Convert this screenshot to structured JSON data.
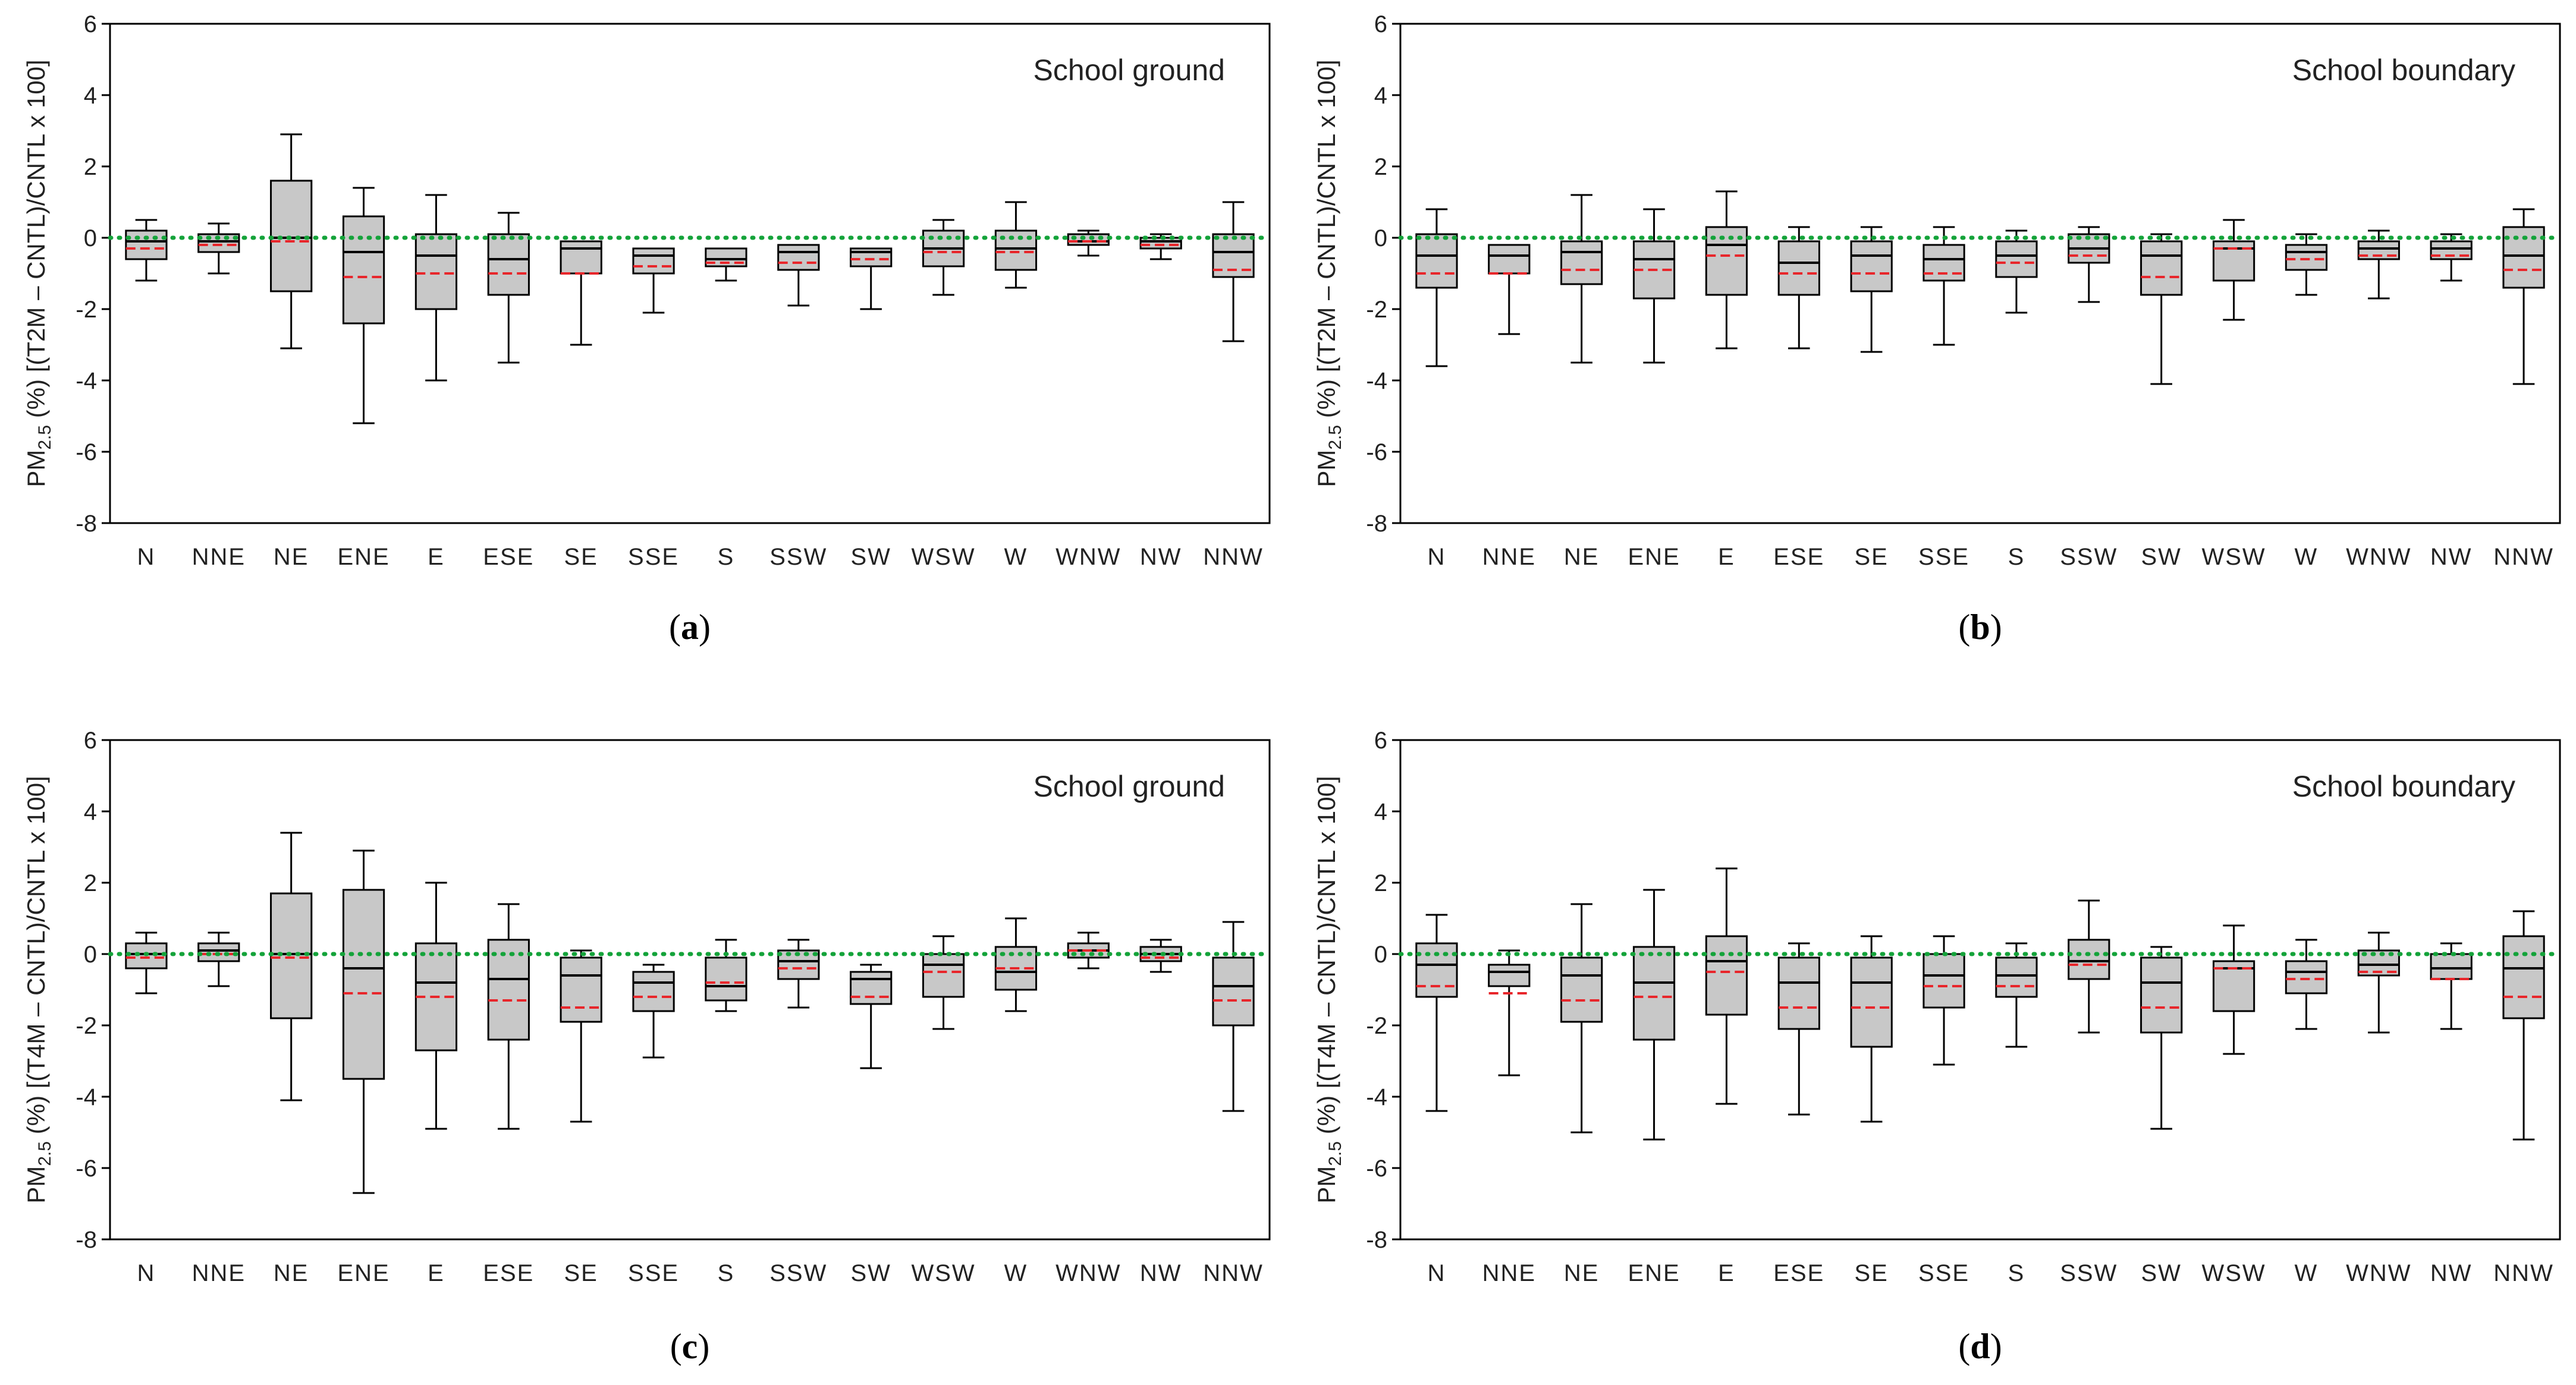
{
  "chart_data": [
    {
      "type": "box",
      "panel_label": "a",
      "annotation": "School ground",
      "ylabel_parts": [
        "PM",
        "2.5",
        " (%) [(T2M – CNTL)/CNTL  x 100]"
      ],
      "ylim": [
        -8,
        6
      ],
      "yticks": [
        -8,
        -6,
        -4,
        -2,
        0,
        2,
        4,
        6
      ],
      "reference_line_y": 0,
      "categories": [
        "N",
        "NNE",
        "NE",
        "ENE",
        "E",
        "ESE",
        "SE",
        "SSE",
        "S",
        "SSW",
        "SW",
        "WSW",
        "W",
        "WNW",
        "NW",
        "NNW"
      ],
      "boxes": [
        {
          "min": -1.2,
          "q1": -0.6,
          "median": -0.1,
          "mean": -0.3,
          "q3": 0.2,
          "max": 0.5
        },
        {
          "min": -1.0,
          "q1": -0.4,
          "median": -0.1,
          "mean": -0.2,
          "q3": 0.1,
          "max": 0.4
        },
        {
          "min": -3.1,
          "q1": -1.5,
          "median": 0.0,
          "mean": -0.1,
          "q3": 1.6,
          "max": 2.9
        },
        {
          "min": -5.2,
          "q1": -2.4,
          "median": -0.4,
          "mean": -1.1,
          "q3": 0.6,
          "max": 1.4
        },
        {
          "min": -4.0,
          "q1": -2.0,
          "median": -0.5,
          "mean": -1.0,
          "q3": 0.1,
          "max": 1.2
        },
        {
          "min": -3.5,
          "q1": -1.6,
          "median": -0.6,
          "mean": -1.0,
          "q3": 0.1,
          "max": 0.7
        },
        {
          "min": -3.0,
          "q1": -1.0,
          "median": -0.3,
          "mean": -1.0,
          "q3": -0.1,
          "max": -0.1
        },
        {
          "min": -2.1,
          "q1": -1.0,
          "median": -0.5,
          "mean": -0.8,
          "q3": -0.3,
          "max": -0.3
        },
        {
          "min": -1.2,
          "q1": -0.8,
          "median": -0.6,
          "mean": -0.7,
          "q3": -0.3,
          "max": -0.3
        },
        {
          "min": -1.9,
          "q1": -0.9,
          "median": -0.4,
          "mean": -0.7,
          "q3": -0.2,
          "max": -0.2
        },
        {
          "min": -2.0,
          "q1": -0.8,
          "median": -0.4,
          "mean": -0.6,
          "q3": -0.3,
          "max": -0.3
        },
        {
          "min": -1.6,
          "q1": -0.8,
          "median": -0.3,
          "mean": -0.4,
          "q3": 0.2,
          "max": 0.5
        },
        {
          "min": -1.4,
          "q1": -0.9,
          "median": -0.3,
          "mean": -0.4,
          "q3": 0.2,
          "max": 1.0
        },
        {
          "min": -0.5,
          "q1": -0.2,
          "median": -0.1,
          "mean": -0.1,
          "q3": 0.1,
          "max": 0.2
        },
        {
          "min": -0.6,
          "q1": -0.3,
          "median": -0.1,
          "mean": -0.2,
          "q3": 0.0,
          "max": 0.1
        },
        {
          "min": -2.9,
          "q1": -1.1,
          "median": -0.4,
          "mean": -0.9,
          "q3": 0.1,
          "max": 1.0
        }
      ]
    },
    {
      "type": "box",
      "panel_label": "b",
      "annotation": "School boundary",
      "ylabel_parts": [
        "PM",
        "2.5",
        " (%) [(T2M – CNTL)/CNTL  x 100]"
      ],
      "ylim": [
        -8,
        6
      ],
      "yticks": [
        -8,
        -6,
        -4,
        -2,
        0,
        2,
        4,
        6
      ],
      "reference_line_y": 0,
      "categories": [
        "N",
        "NNE",
        "NE",
        "ENE",
        "E",
        "ESE",
        "SE",
        "SSE",
        "S",
        "SSW",
        "SW",
        "WSW",
        "W",
        "WNW",
        "NW",
        "NNW"
      ],
      "boxes": [
        {
          "min": -3.6,
          "q1": -1.4,
          "median": -0.5,
          "mean": -1.0,
          "q3": 0.1,
          "max": 0.8
        },
        {
          "min": -2.7,
          "q1": -1.0,
          "median": -0.5,
          "mean": -1.0,
          "q3": -0.2,
          "max": -0.2
        },
        {
          "min": -3.5,
          "q1": -1.3,
          "median": -0.4,
          "mean": -0.9,
          "q3": -0.1,
          "max": 1.2
        },
        {
          "min": -3.5,
          "q1": -1.7,
          "median": -0.6,
          "mean": -0.9,
          "q3": -0.1,
          "max": 0.8
        },
        {
          "min": -3.1,
          "q1": -1.6,
          "median": -0.2,
          "mean": -0.5,
          "q3": 0.3,
          "max": 1.3
        },
        {
          "min": -3.1,
          "q1": -1.6,
          "median": -0.7,
          "mean": -1.0,
          "q3": -0.1,
          "max": 0.3
        },
        {
          "min": -3.2,
          "q1": -1.5,
          "median": -0.5,
          "mean": -1.0,
          "q3": -0.1,
          "max": 0.3
        },
        {
          "min": -3.0,
          "q1": -1.2,
          "median": -0.6,
          "mean": -1.0,
          "q3": -0.2,
          "max": 0.3
        },
        {
          "min": -2.1,
          "q1": -1.1,
          "median": -0.5,
          "mean": -0.7,
          "q3": -0.1,
          "max": 0.2
        },
        {
          "min": -1.8,
          "q1": -0.7,
          "median": -0.3,
          "mean": -0.5,
          "q3": 0.1,
          "max": 0.3
        },
        {
          "min": -4.1,
          "q1": -1.6,
          "median": -0.5,
          "mean": -1.1,
          "q3": -0.1,
          "max": 0.1
        },
        {
          "min": -2.3,
          "q1": -1.2,
          "median": -0.3,
          "mean": -0.3,
          "q3": -0.1,
          "max": 0.5
        },
        {
          "min": -1.6,
          "q1": -0.9,
          "median": -0.4,
          "mean": -0.6,
          "q3": -0.2,
          "max": 0.1
        },
        {
          "min": -1.7,
          "q1": -0.6,
          "median": -0.3,
          "mean": -0.5,
          "q3": -0.1,
          "max": 0.2
        },
        {
          "min": -1.2,
          "q1": -0.6,
          "median": -0.3,
          "mean": -0.5,
          "q3": -0.1,
          "max": 0.1
        },
        {
          "min": -4.1,
          "q1": -1.4,
          "median": -0.5,
          "mean": -0.9,
          "q3": 0.3,
          "max": 0.8
        }
      ]
    },
    {
      "type": "box",
      "panel_label": "c",
      "annotation": "School ground",
      "ylabel_parts": [
        "PM",
        "2.5",
        " (%) [(T4M – CNTL)/CNTL  x 100]"
      ],
      "ylim": [
        -8,
        6
      ],
      "yticks": [
        -8,
        -6,
        -4,
        -2,
        0,
        2,
        4,
        6
      ],
      "reference_line_y": 0,
      "categories": [
        "N",
        "NNE",
        "NE",
        "ENE",
        "E",
        "ESE",
        "SE",
        "SSE",
        "S",
        "SSW",
        "SW",
        "WSW",
        "W",
        "WNW",
        "NW",
        "NNW"
      ],
      "boxes": [
        {
          "min": -1.1,
          "q1": -0.4,
          "median": 0.0,
          "mean": -0.1,
          "q3": 0.3,
          "max": 0.6
        },
        {
          "min": -0.9,
          "q1": -0.2,
          "median": 0.1,
          "mean": 0.0,
          "q3": 0.3,
          "max": 0.6
        },
        {
          "min": -4.1,
          "q1": -1.8,
          "median": 0.0,
          "mean": -0.1,
          "q3": 1.7,
          "max": 3.4
        },
        {
          "min": -6.7,
          "q1": -3.5,
          "median": -0.4,
          "mean": -1.1,
          "q3": 1.8,
          "max": 2.9
        },
        {
          "min": -4.9,
          "q1": -2.7,
          "median": -0.8,
          "mean": -1.2,
          "q3": 0.3,
          "max": 2.0
        },
        {
          "min": -4.9,
          "q1": -2.4,
          "median": -0.7,
          "mean": -1.3,
          "q3": 0.4,
          "max": 1.4
        },
        {
          "min": -4.7,
          "q1": -1.9,
          "median": -0.6,
          "mean": -1.5,
          "q3": -0.1,
          "max": 0.1
        },
        {
          "min": -2.9,
          "q1": -1.6,
          "median": -0.8,
          "mean": -1.2,
          "q3": -0.5,
          "max": -0.3
        },
        {
          "min": -1.6,
          "q1": -1.3,
          "median": -0.9,
          "mean": -0.8,
          "q3": -0.1,
          "max": 0.4
        },
        {
          "min": -1.5,
          "q1": -0.7,
          "median": -0.2,
          "mean": -0.4,
          "q3": 0.1,
          "max": 0.4
        },
        {
          "min": -3.2,
          "q1": -1.4,
          "median": -0.7,
          "mean": -1.2,
          "q3": -0.5,
          "max": -0.3
        },
        {
          "min": -2.1,
          "q1": -1.2,
          "median": -0.3,
          "mean": -0.5,
          "q3": 0.0,
          "max": 0.5
        },
        {
          "min": -1.6,
          "q1": -1.0,
          "median": -0.5,
          "mean": -0.4,
          "q3": 0.2,
          "max": 1.0
        },
        {
          "min": -0.4,
          "q1": -0.1,
          "median": 0.1,
          "mean": 0.1,
          "q3": 0.3,
          "max": 0.6
        },
        {
          "min": -0.5,
          "q1": -0.2,
          "median": 0.0,
          "mean": -0.1,
          "q3": 0.2,
          "max": 0.4
        },
        {
          "min": -4.4,
          "q1": -2.0,
          "median": -0.9,
          "mean": -1.3,
          "q3": -0.1,
          "max": 0.9
        }
      ]
    },
    {
      "type": "box",
      "panel_label": "d",
      "annotation": "School boundary",
      "ylabel_parts": [
        "PM",
        "2.5",
        " (%) [(T4M – CNTL)/CNTL  x 100]"
      ],
      "ylim": [
        -8,
        6
      ],
      "yticks": [
        -8,
        -6,
        -4,
        -2,
        0,
        2,
        4,
        6
      ],
      "reference_line_y": 0,
      "categories": [
        "N",
        "NNE",
        "NE",
        "ENE",
        "E",
        "ESE",
        "SE",
        "SSE",
        "S",
        "SSW",
        "SW",
        "WSW",
        "W",
        "WNW",
        "NW",
        "NNW"
      ],
      "boxes": [
        {
          "min": -4.4,
          "q1": -1.2,
          "median": -0.3,
          "mean": -0.9,
          "q3": 0.3,
          "max": 1.1
        },
        {
          "min": -3.4,
          "q1": -0.9,
          "median": -0.5,
          "mean": -1.1,
          "q3": -0.3,
          "max": 0.1
        },
        {
          "min": -5.0,
          "q1": -1.9,
          "median": -0.6,
          "mean": -1.3,
          "q3": -0.1,
          "max": 1.4
        },
        {
          "min": -5.2,
          "q1": -2.4,
          "median": -0.8,
          "mean": -1.2,
          "q3": 0.2,
          "max": 1.8
        },
        {
          "min": -4.2,
          "q1": -1.7,
          "median": -0.2,
          "mean": -0.5,
          "q3": 0.5,
          "max": 2.4
        },
        {
          "min": -4.5,
          "q1": -2.1,
          "median": -0.8,
          "mean": -1.5,
          "q3": -0.1,
          "max": 0.3
        },
        {
          "min": -4.7,
          "q1": -2.6,
          "median": -0.8,
          "mean": -1.5,
          "q3": -0.1,
          "max": 0.5
        },
        {
          "min": -3.1,
          "q1": -1.5,
          "median": -0.6,
          "mean": -0.9,
          "q3": 0.0,
          "max": 0.5
        },
        {
          "min": -2.6,
          "q1": -1.2,
          "median": -0.6,
          "mean": -0.9,
          "q3": -0.1,
          "max": 0.3
        },
        {
          "min": -2.2,
          "q1": -0.7,
          "median": -0.2,
          "mean": -0.3,
          "q3": 0.4,
          "max": 1.5
        },
        {
          "min": -4.9,
          "q1": -2.2,
          "median": -0.8,
          "mean": -1.5,
          "q3": -0.1,
          "max": 0.2
        },
        {
          "min": -2.8,
          "q1": -1.6,
          "median": -0.4,
          "mean": -0.4,
          "q3": -0.2,
          "max": 0.8
        },
        {
          "min": -2.1,
          "q1": -1.1,
          "median": -0.5,
          "mean": -0.7,
          "q3": -0.2,
          "max": 0.4
        },
        {
          "min": -2.2,
          "q1": -0.6,
          "median": -0.3,
          "mean": -0.5,
          "q3": 0.1,
          "max": 0.6
        },
        {
          "min": -2.1,
          "q1": -0.7,
          "median": -0.4,
          "mean": -0.7,
          "q3": 0.0,
          "max": 0.3
        },
        {
          "min": -5.2,
          "q1": -1.8,
          "median": -0.4,
          "mean": -1.2,
          "q3": 0.5,
          "max": 1.2
        }
      ]
    }
  ],
  "style": {
    "box_fill": "#c8c8c8",
    "box_stroke": "#000000",
    "mean_color": "#e8262b",
    "reference_color": "#14a33a",
    "frame_color": "#000000",
    "text_color": "#222222"
  }
}
